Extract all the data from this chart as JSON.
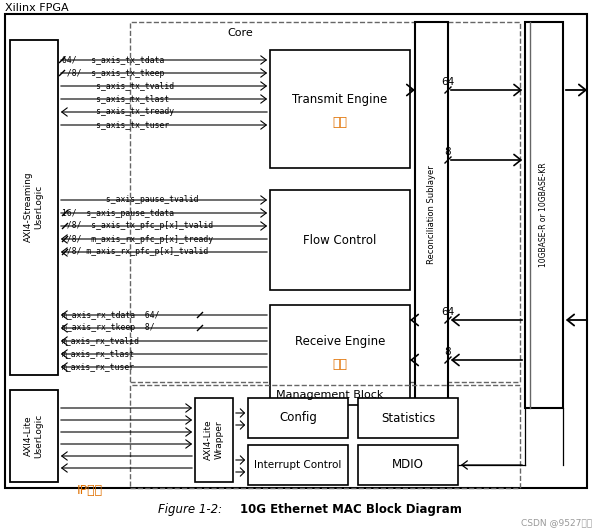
{
  "title_top_left": "Xilinx FPGA",
  "figure_caption_italic": "Figure 1-2:",
  "figure_caption_bold": "10G Ethernet MAC Block Diagram",
  "watermark": "CSDN @9527华安",
  "bg_color": "#ffffff",
  "orange_color": "#e07000",
  "signal_labels_tx": [
    [
      "64/   s_axis_tx_tdata",
      "right"
    ],
    [
      " /8/  s_axis_tx_tkeep",
      "right"
    ],
    [
      "       s_axis_tx_tvalid",
      "right"
    ],
    [
      "       s_axis_tx_tlast",
      "right"
    ],
    [
      "       s_axis_tx_tready",
      "left"
    ],
    [
      "       s_axis_tx_tuser",
      "right"
    ]
  ],
  "signal_labels_fc": [
    [
      "         s_axis_pause_tvalid",
      "right"
    ],
    [
      "16/  s_axis_pause_tdata",
      "right"
    ],
    [
      " /8/  s_axis_tx_pfc_p[x]_tvalid",
      "right"
    ],
    [
      " /8/  m_axis_rx_pfc_p[x]_tready",
      "left"
    ],
    [
      " /8/ m_axis_rx_pfc_p[x]_tvalid",
      "left"
    ]
  ],
  "signal_labels_rx": [
    [
      "m_axis_rx_tdata  64/",
      "left"
    ],
    [
      "m_axis_rx_tkeep  8/",
      "left"
    ],
    [
      "m_axis_rx_tvalid",
      "left"
    ],
    [
      "m_axis_rx_tlast",
      "left"
    ],
    [
      "m_axis_rx_tuser",
      "left"
    ]
  ]
}
